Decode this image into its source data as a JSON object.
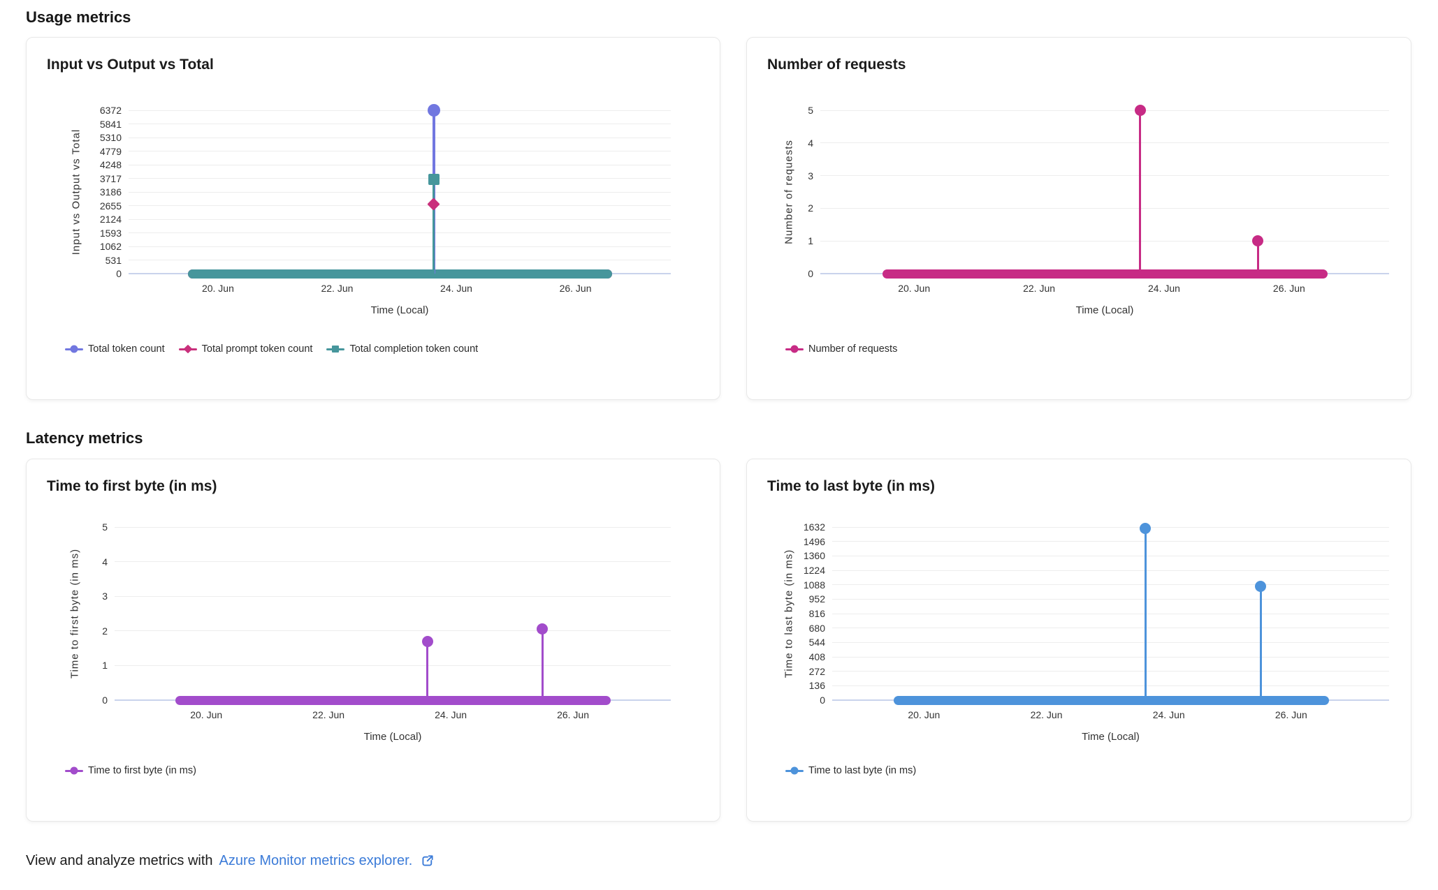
{
  "sections": {
    "usage": "Usage metrics",
    "latency": "Latency metrics"
  },
  "footer": {
    "text": "View and analyze metrics with",
    "link_text": "Azure Monitor metrics explorer.",
    "link_color": "#3B7BD8",
    "icon": "open-in-new-external-link"
  },
  "chart_data": [
    {
      "type": "line",
      "title": "Input vs Output vs Total",
      "xlabel": "Time (Local)",
      "ylabel": "Input vs Output vs Total",
      "x_unit": "day of June",
      "x_domain": [
        18.5,
        27.6
      ],
      "x_ticks": [
        {
          "v": 20,
          "label": "20. Jun"
        },
        {
          "v": 22,
          "label": "22. Jun"
        },
        {
          "v": 24,
          "label": "24. Jun"
        },
        {
          "v": 26,
          "label": "26. Jun"
        }
      ],
      "y_ticks": [
        0,
        531,
        1062,
        1593,
        2124,
        2655,
        3186,
        3717,
        4248,
        4779,
        5310,
        5841,
        6372
      ],
      "ylim": [
        0,
        6372
      ],
      "grid": true,
      "legend_position": "bottom",
      "baseline_x": [
        19.5,
        26.62
      ],
      "series": [
        {
          "name": "Total token count",
          "color": "#7177E0",
          "marker": "circle",
          "line_width": 4,
          "marker_size": 18,
          "baseline_y": 0,
          "points": [
            {
              "x": 23.62,
              "y": 6372
            }
          ]
        },
        {
          "name": "Total prompt token count",
          "color": "#C9307C",
          "marker": "diamond",
          "line_width": 2,
          "marker_size": 13,
          "baseline_y": 0,
          "points": [
            {
              "x": 23.62,
              "y": 2700
            }
          ]
        },
        {
          "name": "Total completion token count",
          "color": "#46969C",
          "marker": "square",
          "line_width": 3,
          "marker_size": 16,
          "baseline_y": 0,
          "points": [
            {
              "x": 23.62,
              "y": 3672
            }
          ]
        }
      ]
    },
    {
      "type": "line",
      "title": "Number of requests",
      "xlabel": "Time (Local)",
      "ylabel": "Number of requests",
      "x_unit": "day of June",
      "x_domain": [
        18.5,
        27.6
      ],
      "x_ticks": [
        {
          "v": 20,
          "label": "20. Jun"
        },
        {
          "v": 22,
          "label": "22. Jun"
        },
        {
          "v": 24,
          "label": "24. Jun"
        },
        {
          "v": 26,
          "label": "26. Jun"
        }
      ],
      "y_ticks": [
        0,
        1,
        2,
        3,
        4,
        5
      ],
      "ylim": [
        0,
        5
      ],
      "grid": true,
      "legend_position": "bottom",
      "baseline_x": [
        19.5,
        26.62
      ],
      "series": [
        {
          "name": "Number of requests",
          "color": "#C72B85",
          "marker": "circle",
          "line_width": 3,
          "marker_size": 16,
          "baseline_y": 0,
          "points": [
            {
              "x": 23.62,
              "y": 5
            },
            {
              "x": 25.5,
              "y": 1
            }
          ]
        }
      ]
    },
    {
      "type": "line",
      "title": "Time to first byte (in ms)",
      "xlabel": "Time (Local)",
      "ylabel": "Time to first byte (in ms)",
      "x_unit": "day of June",
      "x_domain": [
        18.5,
        27.6
      ],
      "x_ticks": [
        {
          "v": 20,
          "label": "20. Jun"
        },
        {
          "v": 22,
          "label": "22. Jun"
        },
        {
          "v": 24,
          "label": "24. Jun"
        },
        {
          "v": 26,
          "label": "26. Jun"
        }
      ],
      "y_ticks": [
        0,
        1,
        2,
        3,
        4,
        5
      ],
      "ylim": [
        0,
        5
      ],
      "grid": true,
      "legend_position": "bottom",
      "baseline_x": [
        19.5,
        26.62
      ],
      "series": [
        {
          "name": "Time to first byte (in ms)",
          "color": "#A24CCB",
          "marker": "circle",
          "line_width": 3,
          "marker_size": 16,
          "baseline_y": 0,
          "points": [
            {
              "x": 23.62,
              "y": 1.7
            },
            {
              "x": 25.5,
              "y": 2.05
            }
          ]
        }
      ]
    },
    {
      "type": "line",
      "title": "Time to last byte (in ms)",
      "xlabel": "Time (Local)",
      "ylabel": "Time to last byte (in ms)",
      "x_unit": "day of June",
      "x_domain": [
        18.5,
        27.6
      ],
      "x_ticks": [
        {
          "v": 20,
          "label": "20. Jun"
        },
        {
          "v": 22,
          "label": "22. Jun"
        },
        {
          "v": 24,
          "label": "24. Jun"
        },
        {
          "v": 26,
          "label": "26. Jun"
        }
      ],
      "y_ticks": [
        0,
        136,
        272,
        408,
        544,
        680,
        816,
        952,
        1088,
        1224,
        1360,
        1496,
        1632
      ],
      "ylim": [
        0,
        1632
      ],
      "grid": true,
      "legend_position": "bottom",
      "baseline_x": [
        19.5,
        26.62
      ],
      "series": [
        {
          "name": "Time to last byte (in ms)",
          "color": "#4D93DB",
          "marker": "circle",
          "line_width": 3,
          "marker_size": 16,
          "baseline_y": 0,
          "points": [
            {
              "x": 23.62,
              "y": 1620
            },
            {
              "x": 25.5,
              "y": 1072
            }
          ]
        }
      ]
    }
  ]
}
